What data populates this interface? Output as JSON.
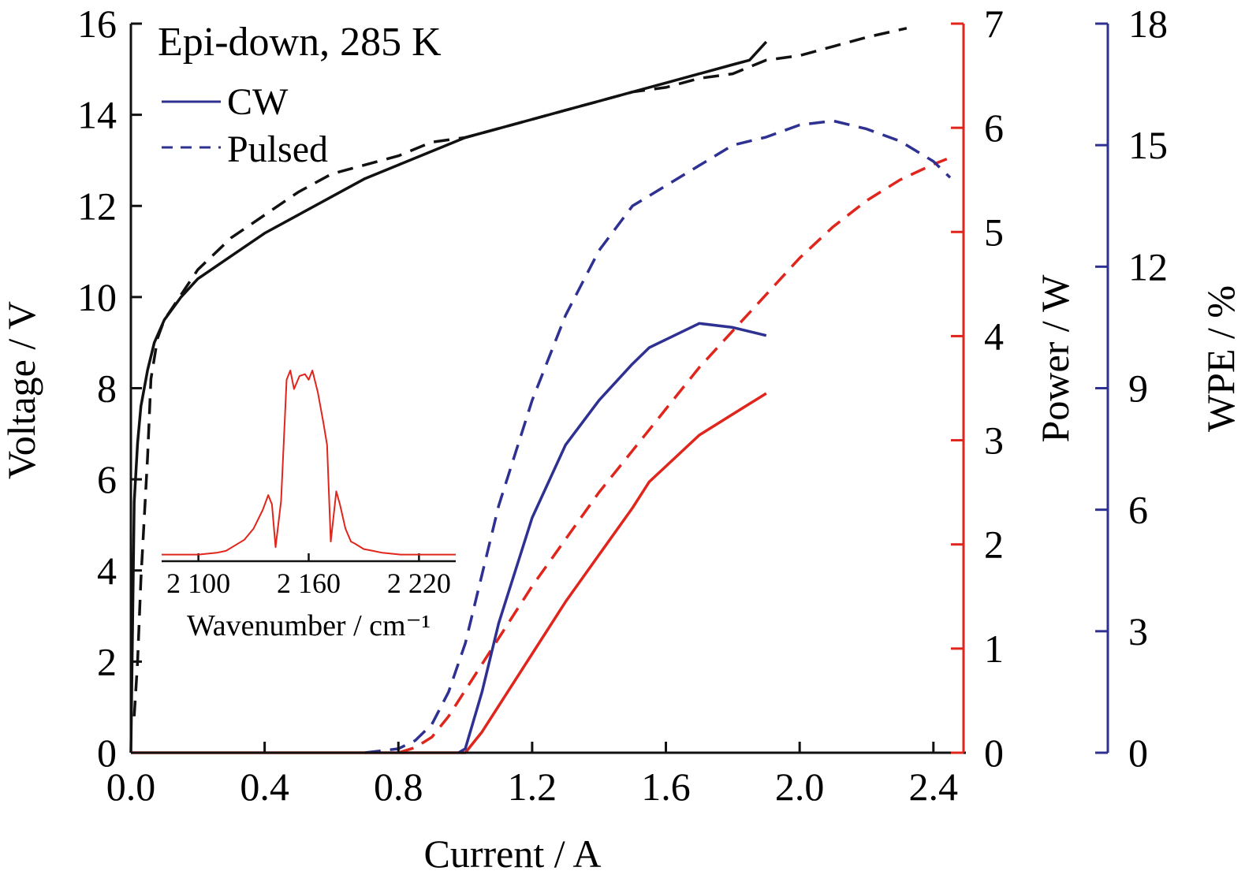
{
  "chart_data": {
    "type": "line",
    "annotation": "Epi-down, 285 K",
    "legend": {
      "items": [
        {
          "label": "CW",
          "style": "solid"
        },
        {
          "label": "Pulsed",
          "style": "dashed"
        }
      ],
      "placement": "top-left"
    },
    "xaxis": {
      "label": "Current / A",
      "range": [
        0,
        2.45
      ],
      "ticks": [
        0,
        0.4,
        0.8,
        1.2,
        1.6,
        2.0,
        2.4
      ],
      "tick_labels": [
        "0.0",
        "0.4",
        "0.8",
        "1.2",
        "1.6",
        "2.0",
        "2.4"
      ]
    },
    "yaxis_left": {
      "label": "Voltage / V",
      "range": [
        0,
        16
      ],
      "ticks": [
        0,
        2,
        4,
        6,
        8,
        10,
        12,
        14,
        16
      ],
      "tick_labels": [
        "0",
        "2",
        "4",
        "6",
        "8",
        "10",
        "12",
        "14",
        "16"
      ],
      "color": "#111111"
    },
    "yaxis_right1": {
      "label": "Power / W",
      "range": [
        0,
        7
      ],
      "ticks": [
        0,
        1,
        2,
        3,
        4,
        5,
        6,
        7
      ],
      "tick_labels": [
        "0",
        "1",
        "2",
        "3",
        "4",
        "5",
        "6",
        "7"
      ],
      "color": "#e0261c"
    },
    "yaxis_right2": {
      "label": "WPE / %",
      "range": [
        0,
        18
      ],
      "ticks": [
        0,
        3,
        6,
        9,
        12,
        15,
        18
      ],
      "tick_labels": [
        "0",
        "3",
        "6",
        "9",
        "12",
        "15",
        "18"
      ],
      "color": "#2e3192"
    },
    "grid": false,
    "series": [
      {
        "axis": "left",
        "mode": "CW",
        "color": "#111111",
        "dash": false,
        "x": [
          0.0,
          0.01,
          0.02,
          0.03,
          0.05,
          0.07,
          0.1,
          0.15,
          0.2,
          0.3,
          0.4,
          0.5,
          0.6,
          0.7,
          0.8,
          0.9,
          1.0,
          1.1,
          1.2,
          1.3,
          1.4,
          1.5,
          1.6,
          1.7,
          1.8,
          1.85,
          1.9
        ],
        "y": [
          0.0,
          5.5,
          6.8,
          7.6,
          8.4,
          9.0,
          9.5,
          10.0,
          10.4,
          10.9,
          11.4,
          11.8,
          12.2,
          12.6,
          12.9,
          13.2,
          13.5,
          13.7,
          13.9,
          14.1,
          14.3,
          14.5,
          14.7,
          14.9,
          15.1,
          15.2,
          15.6
        ]
      },
      {
        "axis": "left",
        "mode": "Pulsed",
        "color": "#111111",
        "dash": true,
        "x": [
          0.01,
          0.02,
          0.03,
          0.05,
          0.06,
          0.08,
          0.1,
          0.2,
          0.3,
          0.4,
          0.5,
          0.6,
          0.7,
          0.8,
          0.9,
          1.0,
          1.1,
          1.2,
          1.3,
          1.4,
          1.5,
          1.6,
          1.7,
          1.8,
          1.9,
          2.0,
          2.1,
          2.2,
          2.32
        ],
        "y": [
          0.8,
          2.0,
          3.8,
          6.5,
          8.2,
          9.1,
          9.5,
          10.6,
          11.3,
          11.8,
          12.3,
          12.7,
          12.9,
          13.1,
          13.4,
          13.5,
          13.7,
          13.9,
          14.1,
          14.3,
          14.5,
          14.6,
          14.8,
          14.9,
          15.2,
          15.3,
          15.5,
          15.7,
          15.9
        ]
      },
      {
        "axis": "right1",
        "mode": "CW",
        "color": "#e0261c",
        "dash": false,
        "x": [
          0.0,
          0.3,
          0.6,
          0.9,
          1.0,
          1.05,
          1.1,
          1.2,
          1.3,
          1.4,
          1.5,
          1.55,
          1.6,
          1.7,
          1.8,
          1.85,
          1.9
        ],
        "y": [
          0.0,
          0.0,
          0.0,
          0.0,
          0.0,
          0.2,
          0.45,
          0.95,
          1.45,
          1.9,
          2.35,
          2.6,
          2.75,
          3.05,
          3.25,
          3.35,
          3.45
        ]
      },
      {
        "axis": "right1",
        "mode": "Pulsed",
        "color": "#e0261c",
        "dash": true,
        "x": [
          0.8,
          0.85,
          0.9,
          0.95,
          1.0,
          1.1,
          1.2,
          1.3,
          1.4,
          1.5,
          1.6,
          1.7,
          1.8,
          1.9,
          2.0,
          2.1,
          2.2,
          2.3,
          2.4,
          2.44
        ],
        "y": [
          0.0,
          0.05,
          0.15,
          0.35,
          0.6,
          1.1,
          1.6,
          2.05,
          2.5,
          2.9,
          3.3,
          3.7,
          4.05,
          4.4,
          4.75,
          5.05,
          5.3,
          5.5,
          5.65,
          5.7
        ]
      },
      {
        "axis": "right2",
        "mode": "CW",
        "color": "#2e3192",
        "dash": false,
        "x": [
          0.98,
          1.0,
          1.05,
          1.1,
          1.2,
          1.3,
          1.4,
          1.5,
          1.55,
          1.6,
          1.7,
          1.8,
          1.9
        ],
        "y": [
          0.0,
          0.1,
          1.5,
          3.2,
          5.8,
          7.6,
          8.7,
          9.6,
          10.0,
          10.2,
          10.6,
          10.5,
          10.3
        ]
      },
      {
        "axis": "right2",
        "mode": "Pulsed",
        "color": "#2e3192",
        "dash": true,
        "x": [
          0.7,
          0.8,
          0.85,
          0.9,
          0.95,
          1.0,
          1.05,
          1.1,
          1.2,
          1.3,
          1.4,
          1.5,
          1.6,
          1.7,
          1.8,
          1.9,
          2.0,
          2.1,
          2.2,
          2.3,
          2.4,
          2.45
        ],
        "y": [
          0.0,
          0.1,
          0.3,
          0.7,
          1.5,
          2.7,
          4.4,
          6.1,
          8.7,
          10.8,
          12.4,
          13.5,
          14.0,
          14.5,
          15.0,
          15.2,
          15.5,
          15.6,
          15.4,
          15.1,
          14.6,
          14.2
        ]
      }
    ],
    "inset": {
      "type": "line",
      "xlabel": "Wavenumber / cm⁻¹",
      "xrange": [
        2080,
        2240
      ],
      "xticks": [
        2100,
        2160,
        2220
      ],
      "xtick_labels": [
        "2 100",
        "2 160",
        "2 220"
      ],
      "yrange": [
        0,
        1
      ],
      "color": "#e0261c",
      "x": [
        2080,
        2090,
        2100,
        2110,
        2115,
        2120,
        2125,
        2130,
        2135,
        2138,
        2140,
        2142,
        2145,
        2148,
        2150,
        2152,
        2155,
        2158,
        2160,
        2162,
        2165,
        2168,
        2170,
        2172,
        2175,
        2177,
        2180,
        2183,
        2185,
        2190,
        2195,
        2200,
        2210,
        2220,
        2230,
        2240
      ],
      "y": [
        0.01,
        0.01,
        0.01,
        0.02,
        0.03,
        0.06,
        0.09,
        0.15,
        0.25,
        0.33,
        0.28,
        0.05,
        0.3,
        0.95,
        1.0,
        0.9,
        0.97,
        0.98,
        0.95,
        1.0,
        0.88,
        0.72,
        0.6,
        0.08,
        0.35,
        0.28,
        0.15,
        0.08,
        0.07,
        0.04,
        0.03,
        0.02,
        0.01,
        0.01,
        0.01,
        0.01
      ]
    }
  }
}
